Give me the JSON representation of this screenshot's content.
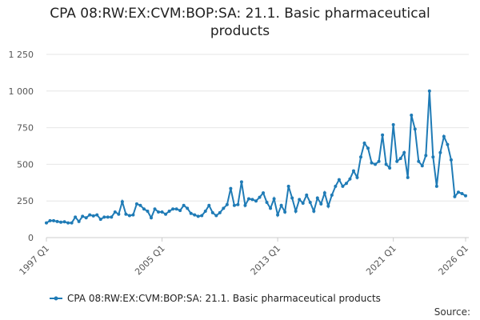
{
  "chart_data": {
    "type": "line",
    "title": "CPA 08:RW:EX:CVM:BOP:SA: 21.1. Basic pharmaceutical products",
    "source": "Source:",
    "categories": [
      "1997 Q1",
      null,
      null,
      null,
      null,
      null,
      null,
      null,
      null,
      null,
      null,
      null,
      null,
      null,
      null,
      null,
      null,
      null,
      null,
      null,
      null,
      null,
      null,
      null,
      null,
      null,
      null,
      null,
      null,
      null,
      null,
      null,
      "2005 Q1",
      null,
      null,
      null,
      null,
      null,
      null,
      null,
      null,
      null,
      null,
      null,
      null,
      null,
      null,
      null,
      null,
      null,
      null,
      null,
      null,
      null,
      null,
      null,
      null,
      null,
      null,
      null,
      null,
      null,
      null,
      null,
      "2013 Q1",
      null,
      null,
      null,
      null,
      null,
      null,
      null,
      null,
      null,
      null,
      null,
      null,
      null,
      null,
      null,
      null,
      null,
      null,
      null,
      null,
      null,
      null,
      null,
      null,
      null,
      null,
      null,
      null,
      null,
      null,
      null,
      "2021 Q1",
      null,
      null,
      null,
      null,
      null,
      null,
      null,
      null,
      null,
      null,
      null,
      null,
      null,
      null,
      null,
      null,
      null,
      null,
      null,
      "2026 Q1"
    ],
    "series": [
      {
        "name": "CPA 08:RW:EX:CVM:BOP:SA: 21.1. Basic pharmaceutical products",
        "color": "#1f7bb6",
        "values": [
          100,
          115,
          115,
          110,
          105,
          108,
          100,
          100,
          140,
          110,
          145,
          135,
          155,
          148,
          155,
          125,
          140,
          140,
          140,
          175,
          160,
          245,
          160,
          150,
          155,
          230,
          220,
          195,
          180,
          135,
          195,
          175,
          175,
          160,
          180,
          195,
          195,
          185,
          220,
          200,
          165,
          155,
          145,
          150,
          180,
          220,
          170,
          150,
          170,
          200,
          225,
          335,
          220,
          225,
          380,
          220,
          265,
          260,
          250,
          275,
          305,
          240,
          200,
          265,
          155,
          220,
          175,
          350,
          270,
          180,
          260,
          235,
          290,
          240,
          180,
          270,
          230,
          305,
          215,
          290,
          350,
          395,
          350,
          370,
          400,
          455,
          410,
          550,
          645,
          610,
          510,
          500,
          520,
          700,
          500,
          475,
          770,
          520,
          540,
          580,
          410,
          835,
          740,
          520,
          490,
          560,
          1000,
          550,
          350,
          580,
          690,
          635,
          530,
          280,
          310,
          300,
          285
        ]
      }
    ],
    "ylim": [
      0,
      1250
    ],
    "yticks": [
      0,
      250,
      500,
      750,
      {
        "value": 1000,
        "label": "1 000"
      },
      {
        "value": 1250,
        "label": "1 250"
      }
    ],
    "grid": true
  }
}
